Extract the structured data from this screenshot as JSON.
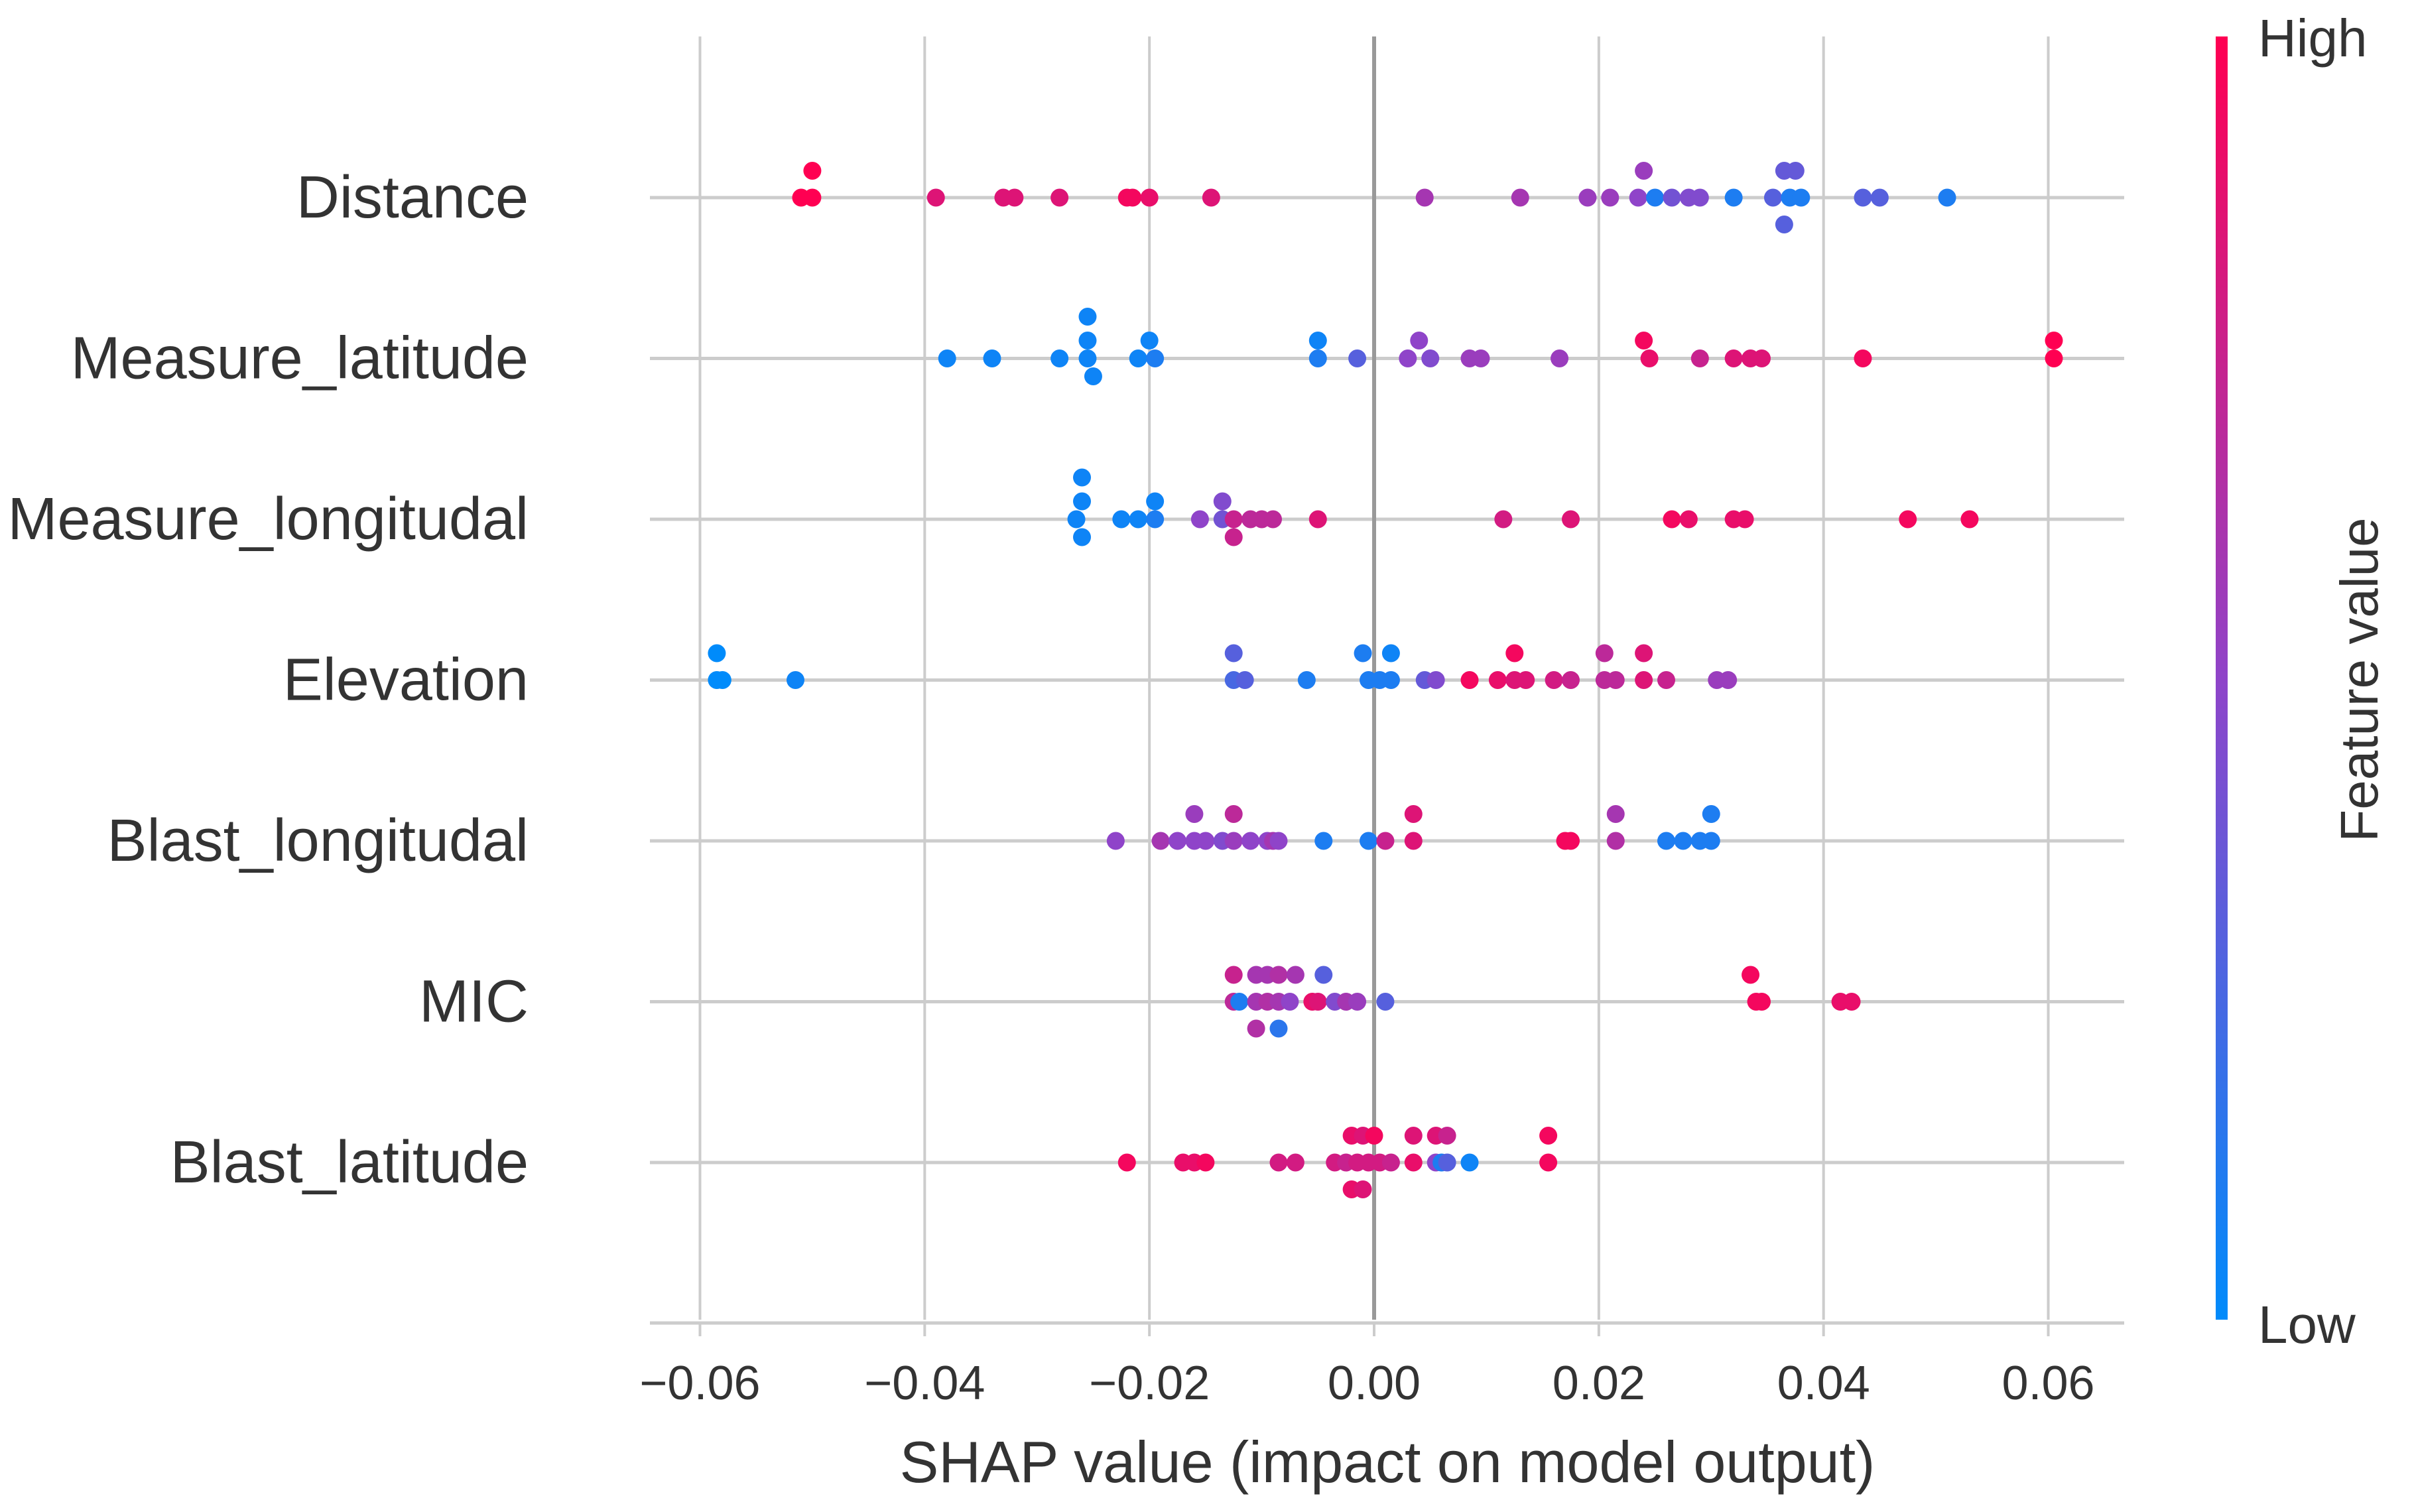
{
  "chart_data": {
    "type": "scatter",
    "subtype": "shap-beeswarm",
    "xlabel": "SHAP value (impact on model output)",
    "xlim": [
      -0.0646,
      0.0666
    ],
    "xticks": [
      -0.06,
      -0.04,
      -0.02,
      0.0,
      0.02,
      0.04,
      0.06
    ],
    "xtick_labels": [
      "−0.06",
      "−0.04",
      "−0.02",
      "0.00",
      "0.02",
      "0.04",
      "0.06"
    ],
    "colorbar": {
      "label": "Feature value",
      "high": "High",
      "low": "Low"
    },
    "colors": {
      "low": "#008bfb",
      "high": "#ff0052"
    },
    "features": [
      {
        "name": "Distance",
        "points": [
          [
            -0.05,
            0.9,
            1.0
          ],
          [
            -0.051,
            0,
            1.0
          ],
          [
            -0.05,
            0,
            1.0
          ],
          [
            -0.039,
            0,
            0.85
          ],
          [
            -0.033,
            0,
            0.85
          ],
          [
            -0.032,
            0,
            0.85
          ],
          [
            -0.028,
            0,
            0.85
          ],
          [
            -0.022,
            0,
            0.95
          ],
          [
            -0.0215,
            0,
            0.95
          ],
          [
            -0.02,
            0,
            0.9
          ],
          [
            -0.0145,
            0,
            0.85
          ],
          [
            0.0045,
            0,
            0.6
          ],
          [
            0.013,
            0,
            0.6
          ],
          [
            0.019,
            0,
            0.55
          ],
          [
            0.021,
            0,
            0.55
          ],
          [
            0.024,
            0.9,
            0.55
          ],
          [
            0.0235,
            0,
            0.5
          ],
          [
            0.025,
            0,
            0.1
          ],
          [
            0.0265,
            0,
            0.4
          ],
          [
            0.028,
            0,
            0.45
          ],
          [
            0.029,
            0,
            0.45
          ],
          [
            0.032,
            0,
            0.1
          ],
          [
            0.0365,
            0.9,
            0.35
          ],
          [
            0.0375,
            0.9,
            0.35
          ],
          [
            0.0355,
            0,
            0.3
          ],
          [
            0.037,
            0,
            0.1
          ],
          [
            0.038,
            0,
            0.1
          ],
          [
            0.0365,
            -0.9,
            0.3
          ],
          [
            0.0435,
            0,
            0.3
          ],
          [
            0.045,
            0,
            0.3
          ],
          [
            0.051,
            0,
            0.1
          ]
        ]
      },
      {
        "name": "Measure_latitude",
        "points": [
          [
            -0.038,
            0,
            0.05
          ],
          [
            -0.034,
            0,
            0.05
          ],
          [
            -0.0255,
            1.4,
            0.05
          ],
          [
            -0.0255,
            0.6,
            0.05
          ],
          [
            -0.028,
            0,
            0.05
          ],
          [
            -0.0255,
            0,
            0.05
          ],
          [
            -0.025,
            -0.6,
            0.05
          ],
          [
            -0.02,
            0.6,
            0.05
          ],
          [
            -0.021,
            0,
            0.05
          ],
          [
            -0.0195,
            0,
            0.1
          ],
          [
            -0.005,
            0.6,
            0.05
          ],
          [
            -0.005,
            0,
            0.1
          ],
          [
            -0.0015,
            0,
            0.3
          ],
          [
            0.004,
            0.6,
            0.5
          ],
          [
            0.003,
            0,
            0.5
          ],
          [
            0.005,
            0,
            0.45
          ],
          [
            0.0085,
            0,
            0.55
          ],
          [
            0.0095,
            0,
            0.55
          ],
          [
            0.0165,
            0,
            0.55
          ],
          [
            0.024,
            0.6,
            0.95
          ],
          [
            0.0245,
            0,
            0.9
          ],
          [
            0.029,
            0,
            0.75
          ],
          [
            0.032,
            0,
            0.85
          ],
          [
            0.0335,
            0,
            0.85
          ],
          [
            0.0345,
            0,
            0.85
          ],
          [
            0.0435,
            0,
            0.95
          ],
          [
            0.0605,
            0.6,
            1.0
          ],
          [
            0.0605,
            0,
            1.0
          ]
        ]
      },
      {
        "name": "Measure_longitudal",
        "points": [
          [
            -0.026,
            1.4,
            0.05
          ],
          [
            -0.026,
            0.6,
            0.05
          ],
          [
            -0.0265,
            0,
            0.05
          ],
          [
            -0.026,
            -0.6,
            0.05
          ],
          [
            -0.0225,
            0,
            0.05
          ],
          [
            -0.021,
            0,
            0.05
          ],
          [
            -0.0195,
            0.6,
            0.05
          ],
          [
            -0.0195,
            0,
            0.1
          ],
          [
            -0.0155,
            0,
            0.5
          ],
          [
            -0.0135,
            0.6,
            0.45
          ],
          [
            -0.0135,
            0,
            0.4
          ],
          [
            -0.0125,
            0,
            0.75
          ],
          [
            -0.0125,
            -0.6,
            0.75
          ],
          [
            -0.011,
            0,
            0.7
          ],
          [
            -0.01,
            0,
            0.7
          ],
          [
            -0.009,
            0,
            0.7
          ],
          [
            -0.005,
            0,
            0.85
          ],
          [
            0.0115,
            0,
            0.8
          ],
          [
            0.0175,
            0,
            0.85
          ],
          [
            0.0265,
            0,
            0.95
          ],
          [
            0.028,
            0,
            0.9
          ],
          [
            0.032,
            0,
            0.9
          ],
          [
            0.033,
            0,
            0.9
          ],
          [
            0.0475,
            0,
            0.95
          ],
          [
            0.053,
            0,
            0.95
          ]
        ]
      },
      {
        "name": "Elevation",
        "points": [
          [
            -0.0585,
            0.9,
            0.0
          ],
          [
            -0.0585,
            0,
            0.0
          ],
          [
            -0.058,
            0,
            0.0
          ],
          [
            -0.0515,
            0,
            0.05
          ],
          [
            -0.0125,
            0.9,
            0.3
          ],
          [
            -0.0125,
            0,
            0.25
          ],
          [
            -0.0115,
            0,
            0.3
          ],
          [
            -0.006,
            0,
            0.1
          ],
          [
            -0.001,
            0.9,
            0.1
          ],
          [
            0.0015,
            0.9,
            0.05
          ],
          [
            -0.0005,
            0,
            0.1
          ],
          [
            0.0005,
            0,
            0.1
          ],
          [
            0.0015,
            0,
            0.1
          ],
          [
            0.0045,
            0,
            0.35
          ],
          [
            0.0055,
            0,
            0.45
          ],
          [
            0.0085,
            0,
            0.95
          ],
          [
            0.011,
            0,
            0.9
          ],
          [
            0.0125,
            0.9,
            0.95
          ],
          [
            0.0125,
            0,
            0.85
          ],
          [
            0.0135,
            0,
            0.85
          ],
          [
            0.016,
            0,
            0.8
          ],
          [
            0.0175,
            0,
            0.75
          ],
          [
            0.0205,
            0.9,
            0.7
          ],
          [
            0.0205,
            0,
            0.7
          ],
          [
            0.0215,
            0,
            0.7
          ],
          [
            0.024,
            0.9,
            0.85
          ],
          [
            0.024,
            0,
            0.85
          ],
          [
            0.026,
            0,
            0.75
          ],
          [
            0.0305,
            0,
            0.55
          ],
          [
            0.0315,
            0,
            0.55
          ]
        ]
      },
      {
        "name": "Blast_longitudal",
        "points": [
          [
            -0.023,
            0,
            0.5
          ],
          [
            -0.019,
            0,
            0.6
          ],
          [
            -0.0175,
            0,
            0.5
          ],
          [
            -0.016,
            0.9,
            0.55
          ],
          [
            -0.016,
            0,
            0.5
          ],
          [
            -0.015,
            0,
            0.5
          ],
          [
            -0.0135,
            0,
            0.45
          ],
          [
            -0.0125,
            0.9,
            0.7
          ],
          [
            -0.0125,
            0,
            0.55
          ],
          [
            -0.011,
            0,
            0.5
          ],
          [
            -0.0095,
            0,
            0.5
          ],
          [
            -0.009,
            0,
            0.6
          ],
          [
            -0.0085,
            0,
            0.5
          ],
          [
            -0.0045,
            0,
            0.1
          ],
          [
            -0.0005,
            0,
            0.1
          ],
          [
            0.001,
            0,
            0.75
          ],
          [
            0.0035,
            0.9,
            0.85
          ],
          [
            0.0035,
            0,
            0.85
          ],
          [
            0.017,
            0,
            0.95
          ],
          [
            0.0175,
            0,
            0.95
          ],
          [
            0.0215,
            0.9,
            0.6
          ],
          [
            0.0215,
            0,
            0.65
          ],
          [
            0.026,
            0,
            0.1
          ],
          [
            0.0275,
            0,
            0.1
          ],
          [
            0.029,
            0,
            0.1
          ],
          [
            0.03,
            0.9,
            0.1
          ],
          [
            0.03,
            0,
            0.1
          ]
        ]
      },
      {
        "name": "MIC",
        "points": [
          [
            -0.0125,
            0.9,
            0.75
          ],
          [
            -0.0105,
            0.9,
            0.6
          ],
          [
            -0.0095,
            0.9,
            0.6
          ],
          [
            -0.0085,
            0.9,
            0.65
          ],
          [
            -0.007,
            0.9,
            0.6
          ],
          [
            -0.0045,
            0.9,
            0.3
          ],
          [
            -0.0125,
            0,
            0.7
          ],
          [
            -0.012,
            0,
            0.1
          ],
          [
            -0.0105,
            0,
            0.6
          ],
          [
            -0.0095,
            0,
            0.65
          ],
          [
            -0.0085,
            0,
            0.6
          ],
          [
            -0.0075,
            0,
            0.5
          ],
          [
            -0.0055,
            0,
            0.9
          ],
          [
            -0.005,
            0,
            0.85
          ],
          [
            -0.0035,
            0,
            0.45
          ],
          [
            -0.0025,
            0,
            0.6
          ],
          [
            -0.0015,
            0,
            0.55
          ],
          [
            0.001,
            0,
            0.3
          ],
          [
            -0.0105,
            -0.9,
            0.65
          ],
          [
            -0.0085,
            -0.9,
            0.15
          ],
          [
            0.0335,
            0.9,
            0.95
          ],
          [
            0.034,
            0,
            0.95
          ],
          [
            0.0345,
            0,
            0.95
          ],
          [
            0.0415,
            0,
            0.9
          ],
          [
            0.0425,
            0,
            0.9
          ]
        ]
      },
      {
        "name": "Blast_latitude",
        "points": [
          [
            -0.022,
            0,
            0.95
          ],
          [
            -0.017,
            0,
            0.9
          ],
          [
            -0.016,
            0,
            0.9
          ],
          [
            -0.015,
            0,
            0.95
          ],
          [
            -0.0085,
            0,
            0.8
          ],
          [
            -0.007,
            0,
            0.8
          ],
          [
            -0.002,
            0.9,
            0.9
          ],
          [
            -0.001,
            0.9,
            0.85
          ],
          [
            0.0,
            0.9,
            0.95
          ],
          [
            -0.0035,
            0,
            0.8
          ],
          [
            -0.0025,
            0,
            0.75
          ],
          [
            -0.0015,
            0,
            0.8
          ],
          [
            -0.0005,
            0,
            0.8
          ],
          [
            0.0005,
            0,
            0.8
          ],
          [
            0.0015,
            0,
            0.75
          ],
          [
            -0.002,
            -0.9,
            0.9
          ],
          [
            -0.001,
            -0.9,
            0.85
          ],
          [
            0.0035,
            0.9,
            0.85
          ],
          [
            0.0055,
            0.9,
            0.85
          ],
          [
            0.0065,
            0.9,
            0.75
          ],
          [
            0.0035,
            0,
            0.9
          ],
          [
            0.0055,
            0,
            0.5
          ],
          [
            0.006,
            0,
            0.1
          ],
          [
            0.0065,
            0,
            0.3
          ],
          [
            0.0085,
            0,
            0.05
          ],
          [
            0.0155,
            0.9,
            0.95
          ],
          [
            0.0155,
            0,
            0.95
          ]
        ]
      }
    ]
  }
}
